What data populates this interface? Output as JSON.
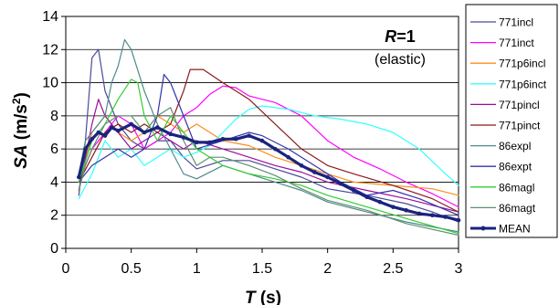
{
  "chart_data": {
    "type": "line",
    "annotation": {
      "r_symbol": "R",
      "r_value": "=1",
      "note": "(elastic)"
    },
    "xlabel": {
      "symbol": "T",
      "unit": " (s)"
    },
    "ylabel": {
      "symbol": "SA",
      "unit": " (m/s",
      "unit_sup": "2",
      "unit_close": ")"
    },
    "xlim": [
      0,
      3
    ],
    "ylim": [
      0,
      14
    ],
    "xticks": [
      0,
      0.5,
      1,
      1.5,
      2,
      2.5,
      3
    ],
    "xtick_labels": [
      "0",
      "0.5",
      "1",
      "1.5",
      "2",
      "2.5",
      "3"
    ],
    "yticks": [
      0,
      2,
      4,
      6,
      8,
      10,
      12,
      14
    ],
    "ytick_labels": [
      "0",
      "2",
      "4",
      "6",
      "8",
      "10",
      "12",
      "14"
    ],
    "legend_position": "right",
    "series": [
      {
        "name": "771incl",
        "color": "#4a4a9c",
        "points": [
          [
            0.1,
            3.2
          ],
          [
            0.15,
            6.5
          ],
          [
            0.2,
            11.5
          ],
          [
            0.25,
            12.0
          ],
          [
            0.3,
            9.5
          ],
          [
            0.4,
            7.5
          ],
          [
            0.5,
            6.5
          ],
          [
            0.6,
            6.0
          ],
          [
            0.7,
            6.5
          ],
          [
            0.8,
            6.5
          ],
          [
            0.9,
            5.5
          ],
          [
            1.0,
            4.8
          ],
          [
            1.2,
            5.3
          ],
          [
            1.4,
            5.3
          ],
          [
            1.6,
            4.8
          ],
          [
            1.8,
            4.3
          ],
          [
            2.0,
            3.6
          ],
          [
            2.3,
            3.2
          ],
          [
            2.6,
            2.7
          ],
          [
            2.8,
            2.2
          ],
          [
            3.0,
            1.6
          ]
        ]
      },
      {
        "name": "771inct",
        "color": "#ff00ff",
        "points": [
          [
            0.1,
            4.0
          ],
          [
            0.2,
            6.0
          ],
          [
            0.3,
            7.0
          ],
          [
            0.4,
            8.0
          ],
          [
            0.5,
            7.5
          ],
          [
            0.6,
            6.0
          ],
          [
            0.7,
            6.5
          ],
          [
            0.8,
            7.0
          ],
          [
            0.9,
            8.0
          ],
          [
            1.0,
            8.5
          ],
          [
            1.1,
            9.3
          ],
          [
            1.2,
            9.8
          ],
          [
            1.3,
            9.7
          ],
          [
            1.4,
            9.2
          ],
          [
            1.6,
            8.8
          ],
          [
            1.8,
            8.0
          ],
          [
            2.0,
            6.5
          ],
          [
            2.2,
            5.5
          ],
          [
            2.4,
            4.8
          ],
          [
            2.6,
            4.0
          ],
          [
            2.8,
            3.3
          ],
          [
            3.0,
            2.5
          ]
        ]
      },
      {
        "name": "771p6incl",
        "color": "#ff8c1a",
        "points": [
          [
            0.1,
            3.5
          ],
          [
            0.2,
            7.0
          ],
          [
            0.3,
            8.0
          ],
          [
            0.4,
            7.0
          ],
          [
            0.5,
            6.5
          ],
          [
            0.6,
            7.0
          ],
          [
            0.7,
            8.0
          ],
          [
            0.8,
            7.5
          ],
          [
            0.9,
            7.0
          ],
          [
            1.0,
            7.5
          ],
          [
            1.1,
            7.0
          ],
          [
            1.2,
            6.5
          ],
          [
            1.4,
            6.2
          ],
          [
            1.6,
            5.5
          ],
          [
            1.8,
            5.0
          ],
          [
            2.0,
            4.5
          ],
          [
            2.2,
            4.0
          ],
          [
            2.5,
            3.8
          ],
          [
            2.8,
            3.6
          ],
          [
            3.0,
            3.2
          ]
        ]
      },
      {
        "name": "771p6inct",
        "color": "#33ffff",
        "points": [
          [
            0.1,
            3.0
          ],
          [
            0.2,
            4.5
          ],
          [
            0.3,
            6.5
          ],
          [
            0.4,
            5.5
          ],
          [
            0.5,
            6.0
          ],
          [
            0.6,
            5.0
          ],
          [
            0.7,
            5.5
          ],
          [
            0.8,
            6.0
          ],
          [
            0.9,
            5.5
          ],
          [
            1.0,
            5.8
          ],
          [
            1.1,
            6.2
          ],
          [
            1.2,
            7.0
          ],
          [
            1.3,
            7.8
          ],
          [
            1.4,
            8.4
          ],
          [
            1.5,
            8.6
          ],
          [
            1.7,
            8.4
          ],
          [
            1.9,
            8.0
          ],
          [
            2.1,
            7.8
          ],
          [
            2.3,
            7.5
          ],
          [
            2.5,
            7.0
          ],
          [
            2.7,
            6.0
          ],
          [
            2.9,
            4.5
          ],
          [
            3.0,
            3.8
          ]
        ]
      },
      {
        "name": "771pincl",
        "color": "#9c0c9c",
        "points": [
          [
            0.1,
            3.5
          ],
          [
            0.2,
            7.5
          ],
          [
            0.25,
            9.0
          ],
          [
            0.3,
            8.0
          ],
          [
            0.4,
            7.0
          ],
          [
            0.5,
            6.0
          ],
          [
            0.6,
            6.5
          ],
          [
            0.7,
            7.0
          ],
          [
            0.8,
            6.5
          ],
          [
            0.9,
            6.0
          ],
          [
            1.0,
            6.5
          ],
          [
            1.2,
            6.0
          ],
          [
            1.4,
            5.5
          ],
          [
            1.6,
            5.0
          ],
          [
            1.8,
            4.6
          ],
          [
            2.0,
            4.0
          ],
          [
            2.3,
            3.5
          ],
          [
            2.6,
            3.0
          ],
          [
            3.0,
            2.2
          ]
        ]
      },
      {
        "name": "771pinct",
        "color": "#8b1a1a",
        "points": [
          [
            0.1,
            4.0
          ],
          [
            0.2,
            5.5
          ],
          [
            0.3,
            7.0
          ],
          [
            0.4,
            7.5
          ],
          [
            0.5,
            7.0
          ],
          [
            0.6,
            7.5
          ],
          [
            0.7,
            7.0
          ],
          [
            0.8,
            7.5
          ],
          [
            0.9,
            9.5
          ],
          [
            0.95,
            10.8
          ],
          [
            1.05,
            10.8
          ],
          [
            1.2,
            10.0
          ],
          [
            1.4,
            9.0
          ],
          [
            1.6,
            7.5
          ],
          [
            1.8,
            6.0
          ],
          [
            2.0,
            5.0
          ],
          [
            2.2,
            4.5
          ],
          [
            2.5,
            3.8
          ],
          [
            2.8,
            3.0
          ],
          [
            3.0,
            2.2
          ]
        ]
      },
      {
        "name": "86expl",
        "color": "#4f8a8a",
        "points": [
          [
            0.1,
            4.5
          ],
          [
            0.15,
            6.5
          ],
          [
            0.2,
            7.0
          ],
          [
            0.3,
            8.0
          ],
          [
            0.35,
            10.0
          ],
          [
            0.4,
            11.0
          ],
          [
            0.45,
            12.6
          ],
          [
            0.5,
            12.0
          ],
          [
            0.6,
            9.5
          ],
          [
            0.7,
            7.5
          ],
          [
            0.8,
            6.0
          ],
          [
            0.9,
            4.5
          ],
          [
            1.0,
            4.2
          ],
          [
            1.2,
            5.0
          ],
          [
            1.4,
            4.5
          ],
          [
            1.6,
            4.0
          ],
          [
            1.8,
            3.5
          ],
          [
            2.0,
            2.8
          ],
          [
            2.3,
            2.2
          ],
          [
            2.6,
            1.6
          ],
          [
            3.0,
            1.0
          ]
        ]
      },
      {
        "name": "86expt",
        "color": "#3333aa",
        "points": [
          [
            0.1,
            4.0
          ],
          [
            0.2,
            5.0
          ],
          [
            0.3,
            5.5
          ],
          [
            0.4,
            6.0
          ],
          [
            0.5,
            5.5
          ],
          [
            0.6,
            6.0
          ],
          [
            0.7,
            8.0
          ],
          [
            0.75,
            10.5
          ],
          [
            0.8,
            10.0
          ],
          [
            0.9,
            8.0
          ],
          [
            1.0,
            6.0
          ],
          [
            1.2,
            6.5
          ],
          [
            1.4,
            7.0
          ],
          [
            1.5,
            6.8
          ],
          [
            1.7,
            6.0
          ],
          [
            1.9,
            5.0
          ],
          [
            2.1,
            4.0
          ],
          [
            2.3,
            3.2
          ],
          [
            2.5,
            3.5
          ],
          [
            2.7,
            3.0
          ],
          [
            3.0,
            2.0
          ]
        ]
      },
      {
        "name": "86magl",
        "color": "#33cc33",
        "points": [
          [
            0.1,
            4.0
          ],
          [
            0.2,
            6.5
          ],
          [
            0.3,
            7.5
          ],
          [
            0.4,
            9.0
          ],
          [
            0.5,
            10.2
          ],
          [
            0.55,
            10.0
          ],
          [
            0.6,
            8.0
          ],
          [
            0.7,
            6.5
          ],
          [
            0.8,
            8.0
          ],
          [
            0.9,
            7.0
          ],
          [
            1.0,
            6.0
          ],
          [
            1.2,
            5.0
          ],
          [
            1.4,
            4.5
          ],
          [
            1.6,
            4.2
          ],
          [
            1.8,
            3.8
          ],
          [
            2.0,
            3.2
          ],
          [
            2.3,
            2.5
          ],
          [
            2.6,
            1.8
          ],
          [
            3.0,
            0.9
          ]
        ]
      },
      {
        "name": "86magt",
        "color": "#5f8f6f",
        "points": [
          [
            0.1,
            3.5
          ],
          [
            0.15,
            5.0
          ],
          [
            0.2,
            6.0
          ],
          [
            0.3,
            7.5
          ],
          [
            0.4,
            8.0
          ],
          [
            0.5,
            8.0
          ],
          [
            0.6,
            7.0
          ],
          [
            0.7,
            8.0
          ],
          [
            0.8,
            8.5
          ],
          [
            0.9,
            6.5
          ],
          [
            1.0,
            5.0
          ],
          [
            1.1,
            5.5
          ],
          [
            1.2,
            5.5
          ],
          [
            1.4,
            5.0
          ],
          [
            1.6,
            4.4
          ],
          [
            1.8,
            3.6
          ],
          [
            2.0,
            2.9
          ],
          [
            2.3,
            2.3
          ],
          [
            2.6,
            1.5
          ],
          [
            3.0,
            0.8
          ]
        ]
      },
      {
        "name": "MEAN",
        "color": "#1a237e",
        "bold": true,
        "points": [
          [
            0.1,
            4.3
          ],
          [
            0.15,
            6.0
          ],
          [
            0.2,
            6.6
          ],
          [
            0.25,
            7.0
          ],
          [
            0.3,
            6.8
          ],
          [
            0.35,
            7.3
          ],
          [
            0.4,
            7.1
          ],
          [
            0.5,
            7.5
          ],
          [
            0.6,
            7.0
          ],
          [
            0.7,
            7.3
          ],
          [
            0.8,
            6.9
          ],
          [
            0.9,
            6.7
          ],
          [
            1.0,
            6.4
          ],
          [
            1.1,
            6.4
          ],
          [
            1.2,
            6.6
          ],
          [
            1.3,
            6.6
          ],
          [
            1.4,
            6.8
          ],
          [
            1.5,
            6.5
          ],
          [
            1.6,
            6.0
          ],
          [
            1.7,
            5.5
          ],
          [
            1.8,
            5.0
          ],
          [
            1.9,
            4.6
          ],
          [
            2.0,
            4.3
          ],
          [
            2.1,
            3.9
          ],
          [
            2.2,
            3.5
          ],
          [
            2.3,
            3.1
          ],
          [
            2.4,
            2.8
          ],
          [
            2.5,
            2.5
          ],
          [
            2.6,
            2.3
          ],
          [
            2.7,
            2.1
          ],
          [
            2.8,
            2.0
          ],
          [
            2.9,
            1.9
          ],
          [
            3.0,
            1.7
          ]
        ]
      }
    ]
  }
}
